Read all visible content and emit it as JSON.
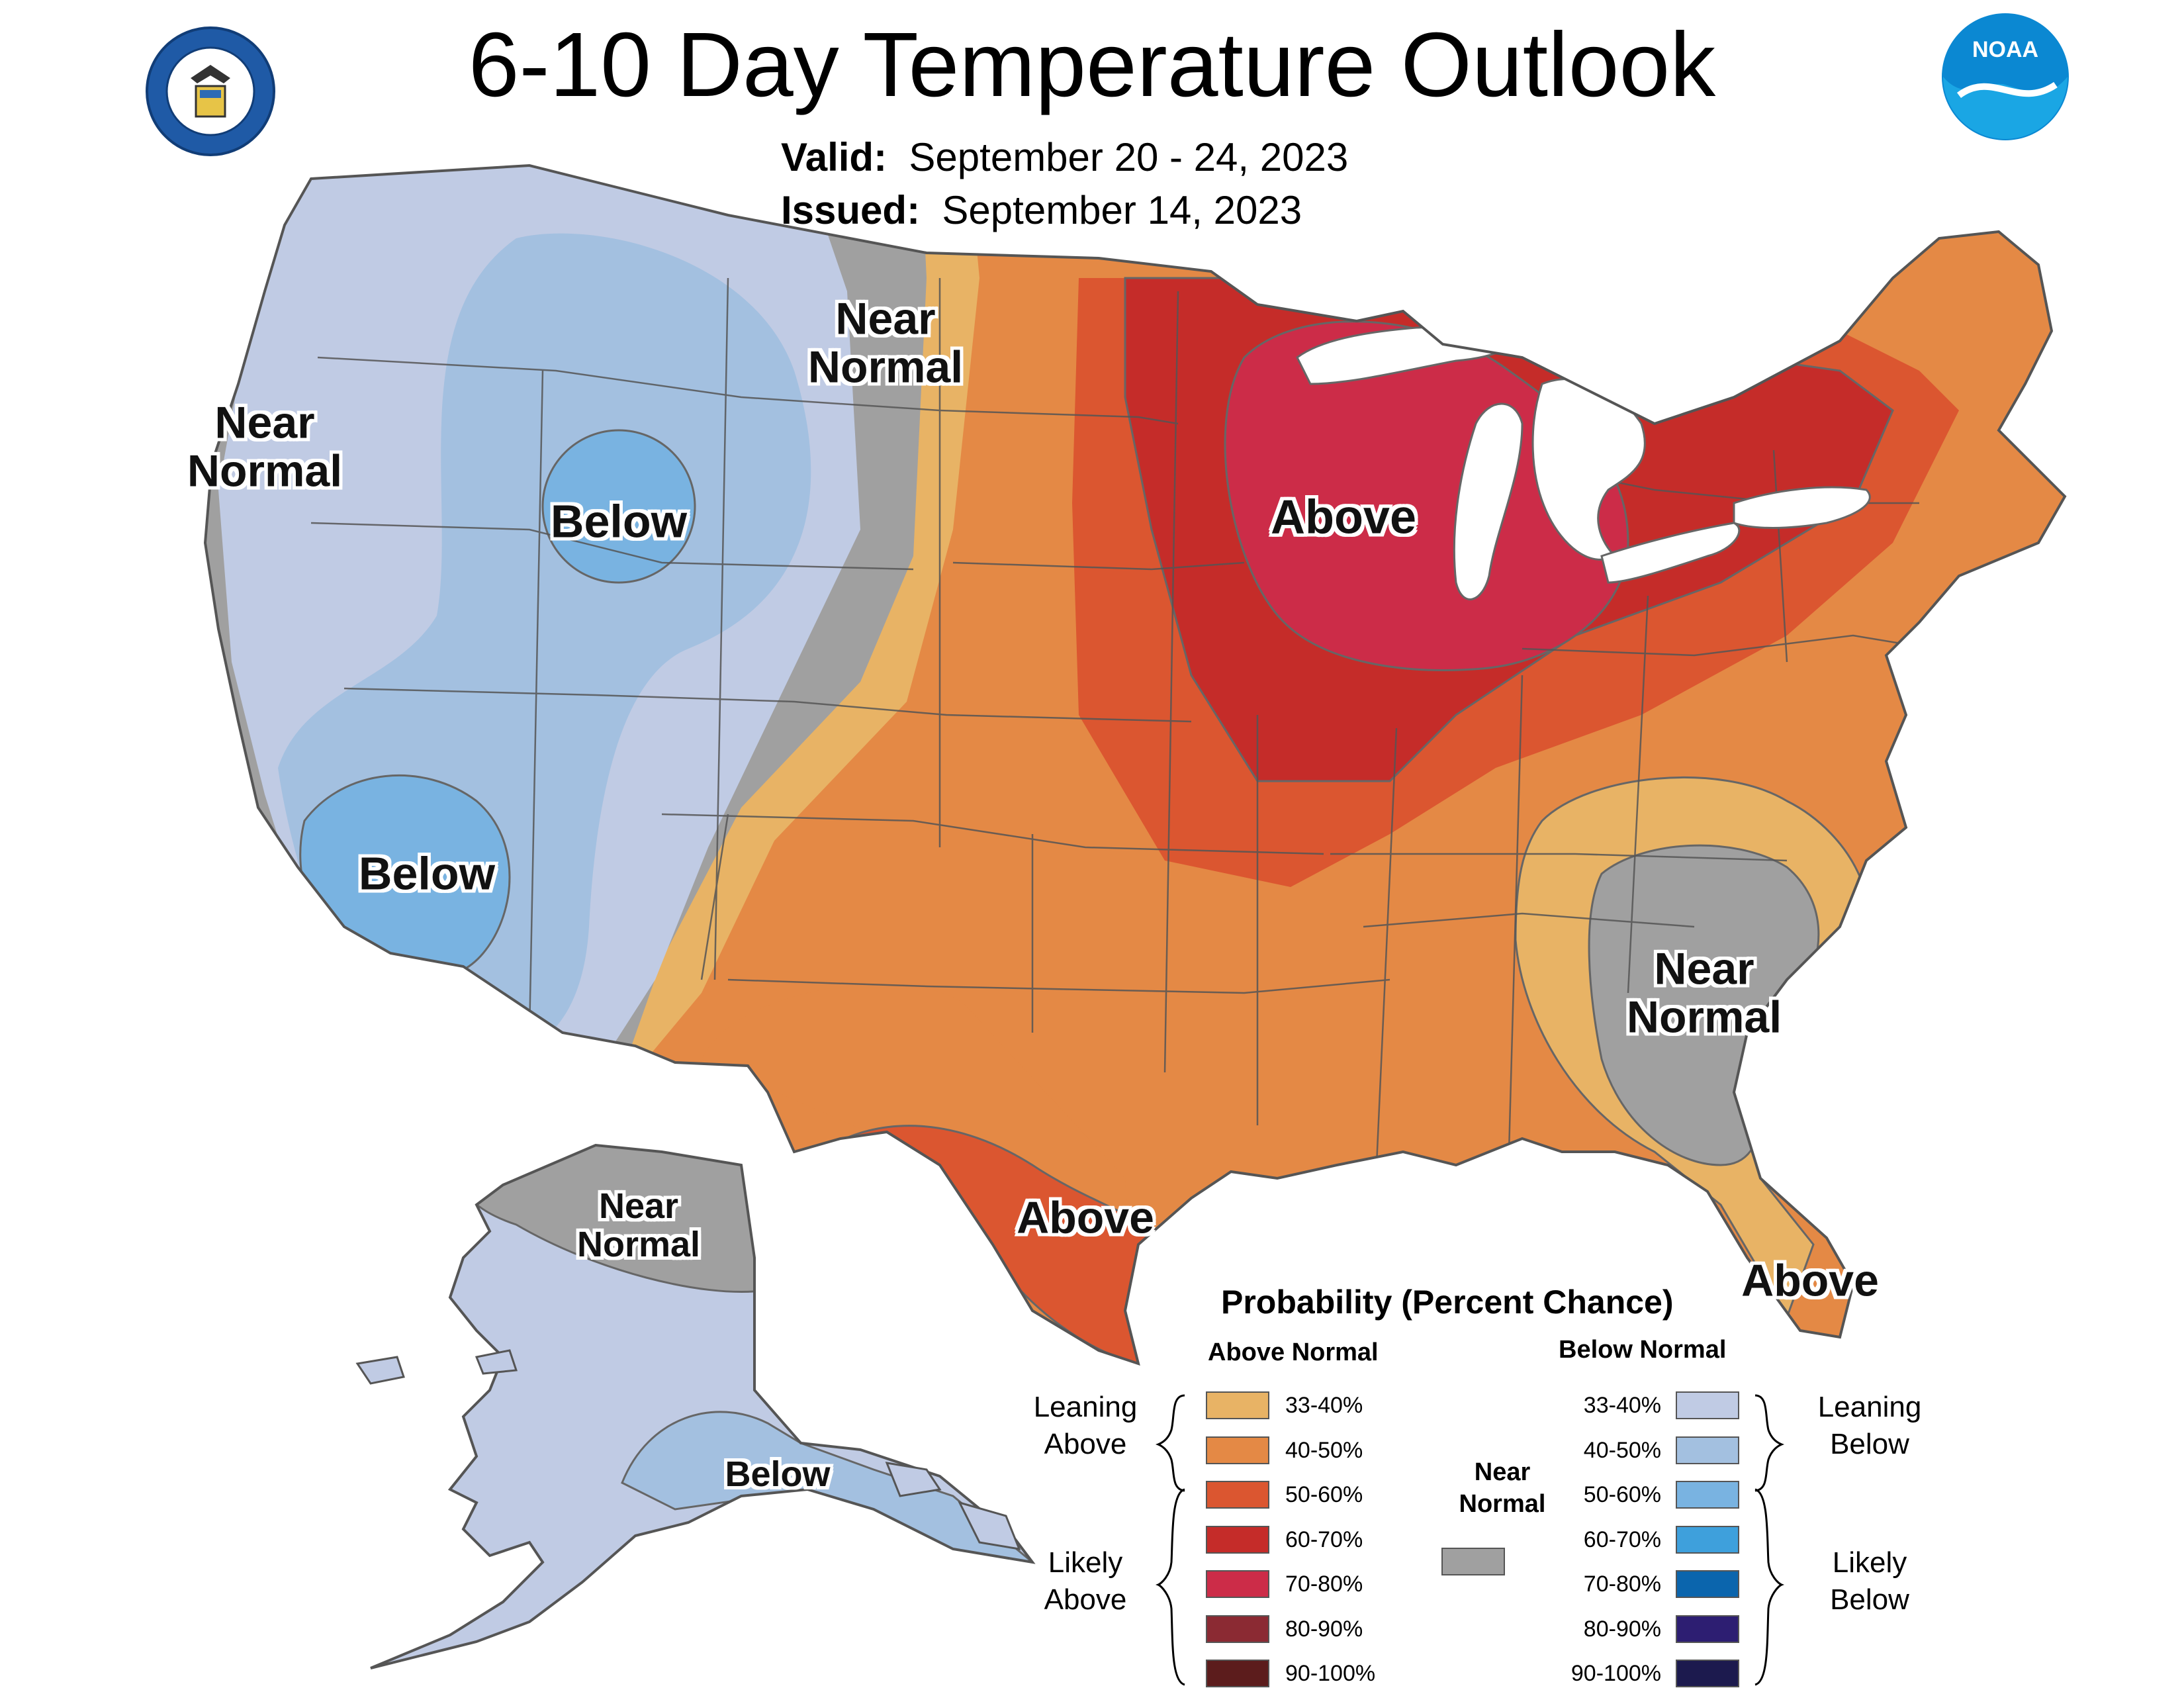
{
  "header": {
    "title": "6-10 Day Temperature Outlook",
    "valid_label": "Valid:",
    "valid_value": "September 20 - 24, 2023",
    "issued_label": "Issued:",
    "issued_value": "September 14, 2023",
    "left_logo_icon": "department-of-commerce-seal-icon",
    "right_logo_icon": "noaa-logo-icon",
    "noaa_text": "NOAA"
  },
  "regions": {
    "west_coast": "Near Normal",
    "idaho_wyoming": "Below",
    "southern_california": "Below",
    "dakotas": "Near Normal",
    "great_lakes": "Above",
    "texas": "Above",
    "southeast": "Near Normal",
    "florida": "Above",
    "north_alaska": "Near Normal",
    "southeast_alaska": "Below"
  },
  "legend": {
    "title": "Probability (Percent Chance)",
    "above_header": "Above Normal",
    "below_header": "Below Normal",
    "near_normal_label": "Near Normal",
    "near_normal_color": "#a0a0a0",
    "leaning_above": "Leaning Above",
    "likely_above": "Likely Above",
    "leaning_below": "Leaning Below",
    "likely_below": "Likely Below",
    "above": [
      {
        "label": "33-40%",
        "color": "#e8b365"
      },
      {
        "label": "40-50%",
        "color": "#e48945"
      },
      {
        "label": "50-60%",
        "color": "#db5630"
      },
      {
        "label": "60-70%",
        "color": "#c52c29"
      },
      {
        "label": "70-80%",
        "color": "#cc2c48"
      },
      {
        "label": "80-90%",
        "color": "#8b2a33"
      },
      {
        "label": "90-100%",
        "color": "#5c1c1c"
      }
    ],
    "below": [
      {
        "label": "33-40%",
        "color": "#c0cbe4"
      },
      {
        "label": "40-50%",
        "color": "#a3c0e0"
      },
      {
        "label": "50-60%",
        "color": "#79b3e1"
      },
      {
        "label": "60-70%",
        "color": "#3ea0dc"
      },
      {
        "label": "70-80%",
        "color": "#0b65ad"
      },
      {
        "label": "80-90%",
        "color": "#2d1e72"
      },
      {
        "label": "90-100%",
        "color": "#1c1a4e"
      }
    ]
  }
}
